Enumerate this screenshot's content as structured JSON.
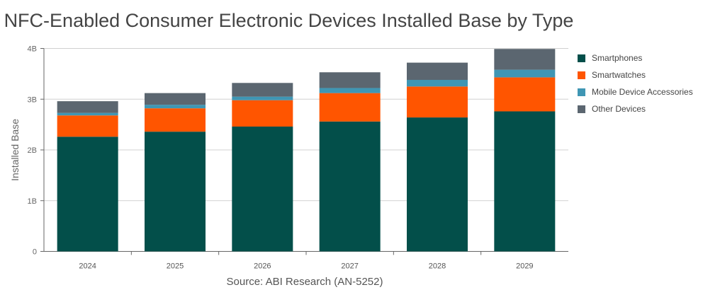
{
  "chart_data": {
    "type": "bar",
    "stacked": true,
    "title": "NFC-Enabled Consumer Electronic Devices Installed Base by Type",
    "source": "Source: ABI Research (AN-5252)",
    "xlabel": "",
    "ylabel": "Installed Base",
    "ylim": [
      0,
      4000000000
    ],
    "yticks": [
      {
        "v": 0,
        "label": "0"
      },
      {
        "v": 1000000000,
        "label": "1B"
      },
      {
        "v": 2000000000,
        "label": "2B"
      },
      {
        "v": 3000000000,
        "label": "3B"
      },
      {
        "v": 4000000000,
        "label": "4B"
      }
    ],
    "grid": true,
    "legend_position": "right",
    "categories": [
      "2024",
      "2025",
      "2026",
      "2027",
      "2028",
      "2029"
    ],
    "series": [
      {
        "name": "Smartphones",
        "color": "#034f4a",
        "values": [
          2260000000,
          2360000000,
          2460000000,
          2560000000,
          2640000000,
          2760000000
        ]
      },
      {
        "name": "Smartwatches",
        "color": "#ff5500",
        "values": [
          420000000,
          460000000,
          520000000,
          560000000,
          610000000,
          670000000
        ]
      },
      {
        "name": "Mobile Device Accessories",
        "color": "#3f96b4",
        "values": [
          50000000,
          70000000,
          70000000,
          100000000,
          130000000,
          150000000
        ]
      },
      {
        "name": "Other Devices",
        "color": "#5b6670",
        "values": [
          230000000,
          230000000,
          270000000,
          310000000,
          340000000,
          410000000
        ]
      }
    ]
  }
}
